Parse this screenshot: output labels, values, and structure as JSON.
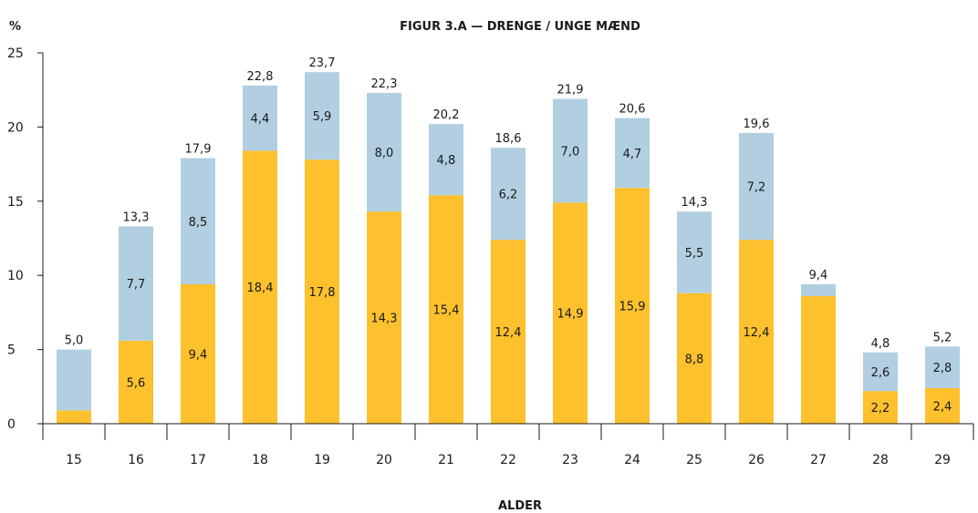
{
  "chart_data": {
    "type": "bar",
    "stacked": true,
    "title": "FIGUR 3.A — DRENGE / UNGE MÆND",
    "ylabel": "%",
    "xlabel": "ALDER",
    "ylim": [
      0,
      25
    ],
    "yticks": [
      0,
      5,
      10,
      15,
      20,
      25
    ],
    "grid": false,
    "legend": "none",
    "categories": [
      "15",
      "16",
      "17",
      "18",
      "19",
      "20",
      "21",
      "22",
      "23",
      "24",
      "25",
      "26",
      "27",
      "28",
      "29"
    ],
    "series": [
      {
        "color": "#fcc12d",
        "values": [
          0.9,
          5.6,
          9.4,
          18.4,
          17.8,
          14.3,
          15.4,
          12.4,
          14.9,
          15.9,
          8.8,
          12.4,
          8.6,
          2.2,
          2.4
        ],
        "labels": [
          "",
          "5,6",
          "9,4",
          "18,4",
          "17,8",
          "14,3",
          "15,4",
          "12,4",
          "14,9",
          "15,9",
          "8,8",
          "12,4",
          "",
          "2,2",
          "2,4"
        ]
      },
      {
        "color": "#b1cfe1",
        "values": [
          4.1,
          7.7,
          8.5,
          4.4,
          5.9,
          8.0,
          4.8,
          6.2,
          7.0,
          4.7,
          5.5,
          7.2,
          0.8,
          2.6,
          2.8
        ],
        "labels": [
          "",
          "7,7",
          "8,5",
          "4,4",
          "5,9",
          "8,0",
          "4,8",
          "6,2",
          "7,0",
          "4,7",
          "5,5",
          "7,2",
          "",
          "2,6",
          "2,8"
        ]
      }
    ],
    "totals": [
      "5,0",
      "13,3",
      "17,9",
      "22,8",
      "23,7",
      "22,3",
      "20,2",
      "18,6",
      "21,9",
      "20,6",
      "14,3",
      "19,6",
      "9,4",
      "4,8",
      "5,2"
    ]
  }
}
